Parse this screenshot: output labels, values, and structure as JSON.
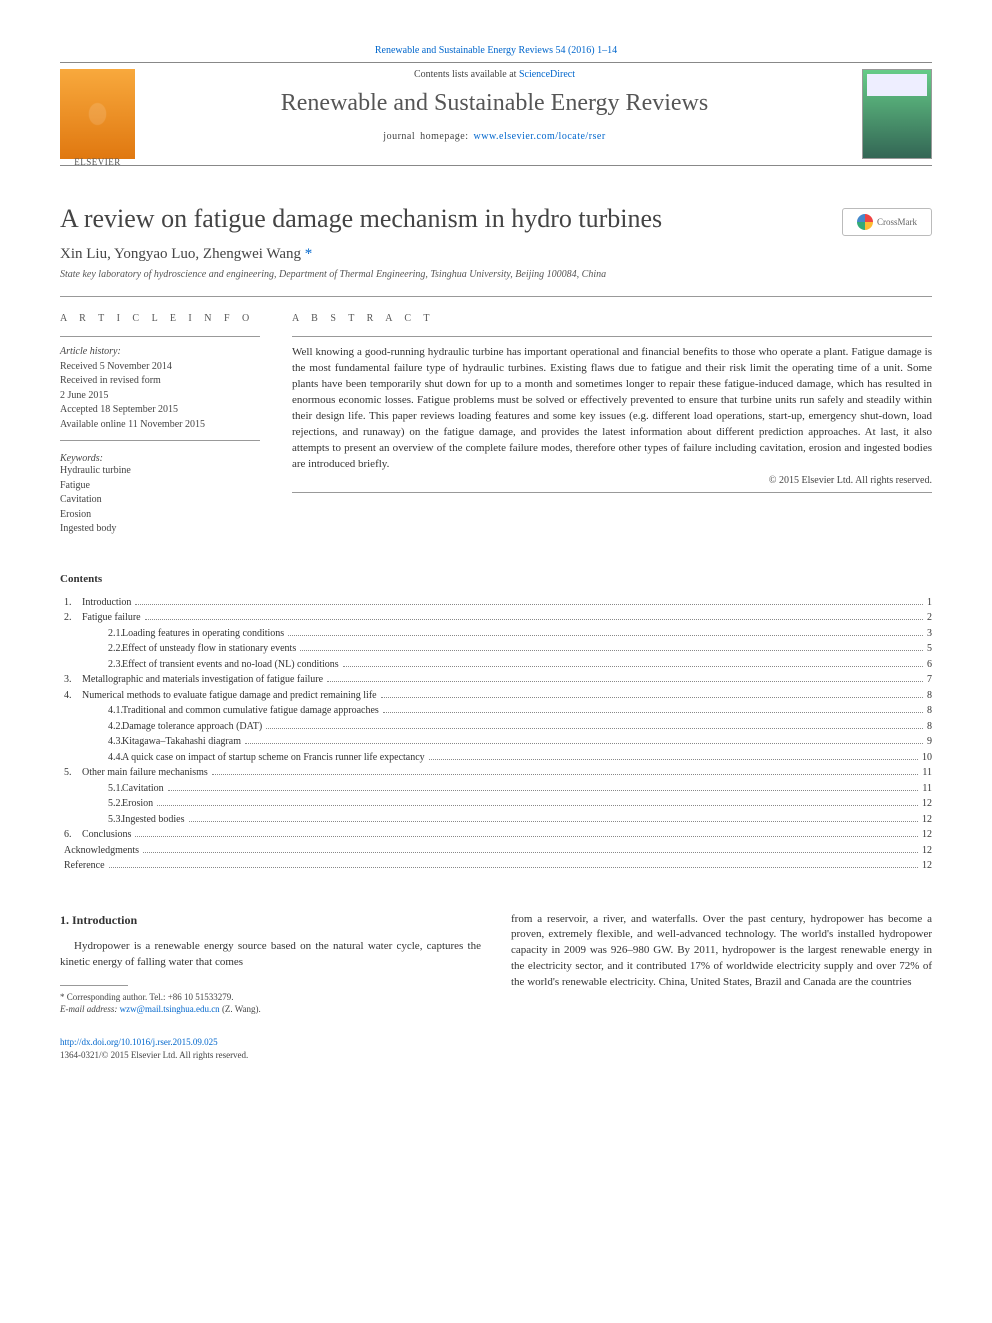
{
  "topLink": "Renewable and Sustainable Energy Reviews 54 (2016) 1–14",
  "header": {
    "contentsLine": "Contents lists available at ",
    "contentsLinkText": "ScienceDirect",
    "journalTitle": "Renewable and Sustainable Energy Reviews",
    "homepagePrefix": "journal homepage: ",
    "homepageUrl": "www.elsevier.com/locate/rser",
    "publisher": "ELSEVIER"
  },
  "article": {
    "title": "A review on fatigue damage mechanism in hydro turbines",
    "authors": "Xin Liu, Yongyao Luo, Zhengwei Wang",
    "corrMark": "*",
    "affiliation": "State key laboratory of hydroscience and engineering, Department of Thermal Engineering, Tsinghua University, Beijing 100084, China",
    "crossmarkLabel": "CrossMark"
  },
  "info": {
    "heading": "A R T I C L E   I N F O",
    "historyLabel": "Article history:",
    "history": [
      "Received 5 November 2014",
      "Received in revised form",
      "2 June 2015",
      "Accepted 18 September 2015",
      "Available online 11 November 2015"
    ],
    "keywordsLabel": "Keywords:",
    "keywords": [
      "Hydraulic turbine",
      "Fatigue",
      "Cavitation",
      "Erosion",
      "Ingested body"
    ]
  },
  "abstract": {
    "heading": "A B S T R A C T",
    "text": "Well knowing a good-running hydraulic turbine has important operational and financial benefits to those who operate a plant. Fatigue damage is the most fundamental failure type of hydraulic turbines. Existing flaws due to fatigue and their risk limit the operating time of a unit. Some plants have been temporarily shut down for up to a month and sometimes longer to repair these fatigue-induced damage, which has resulted in enormous economic losses. Fatigue problems must be solved or effectively prevented to ensure that turbine units run safely and steadily within their design life. This paper reviews loading features and some key issues (e.g. different load operations, start-up, emergency shut-down, load rejections, and runaway) on the fatigue damage, and provides the latest information about different prediction approaches. At last, it also attempts to present an overview of the complete failure modes, therefore other types of failure including cavitation, erosion and ingested bodies are introduced briefly.",
    "copyright": "© 2015 Elsevier Ltd. All rights reserved."
  },
  "contents": {
    "heading": "Contents",
    "items": [
      {
        "level": 1,
        "num": "1.",
        "title": "Introduction",
        "page": "1"
      },
      {
        "level": 1,
        "num": "2.",
        "title": "Fatigue failure",
        "page": "2"
      },
      {
        "level": 2,
        "num": "2.1.",
        "title": "Loading features in operating conditions",
        "page": "3"
      },
      {
        "level": 2,
        "num": "2.2.",
        "title": "Effect of unsteady flow in stationary events",
        "page": "5"
      },
      {
        "level": 2,
        "num": "2.3.",
        "title": "Effect of transient events and no-load (NL) conditions",
        "page": "6"
      },
      {
        "level": 1,
        "num": "3.",
        "title": "Metallographic and materials investigation of fatigue failure",
        "page": "7"
      },
      {
        "level": 1,
        "num": "4.",
        "title": "Numerical methods to evaluate fatigue damage and predict remaining life",
        "page": "8"
      },
      {
        "level": 2,
        "num": "4.1.",
        "title": "Traditional and common cumulative fatigue damage approaches",
        "page": "8"
      },
      {
        "level": 2,
        "num": "4.2.",
        "title": "Damage tolerance approach (DAT)",
        "page": "8"
      },
      {
        "level": 2,
        "num": "4.3.",
        "title": "Kitagawa–Takahashi diagram",
        "page": "9"
      },
      {
        "level": 2,
        "num": "4.4.",
        "title": "A quick case on impact of startup scheme on Francis runner life expectancy",
        "page": "10"
      },
      {
        "level": 1,
        "num": "5.",
        "title": "Other main failure mechanisms",
        "page": "11"
      },
      {
        "level": 2,
        "num": "5.1.",
        "title": "Cavitation",
        "page": "11"
      },
      {
        "level": 2,
        "num": "5.2.",
        "title": "Erosion",
        "page": "12"
      },
      {
        "level": 2,
        "num": "5.3.",
        "title": "Ingested bodies",
        "page": "12"
      },
      {
        "level": 1,
        "num": "6.",
        "title": "Conclusions",
        "page": "12"
      },
      {
        "level": 0,
        "num": "",
        "title": "Acknowledgments",
        "page": "12"
      },
      {
        "level": 0,
        "num": "",
        "title": "Reference",
        "page": "12"
      }
    ]
  },
  "body": {
    "section1Heading": "1. Introduction",
    "col1p1": "Hydropower is a renewable energy source based on the natural water cycle, captures the kinetic energy of falling water that comes",
    "col2p1": "from a reservoir, a river, and waterfalls. Over the past century, hydropower has become a proven, extremely flexible, and well-advanced technology. The world's installed hydropower capacity in 2009 was 926–980 GW. By 2011, hydropower is the largest renewable energy in the electricity sector, and it contributed 17% of worldwide electricity supply and over 72% of the world's renewable electricity. China, United States, Brazil and Canada are the countries"
  },
  "footnote": {
    "corr": "* Corresponding author. Tel.: +86 10 51533279.",
    "emailLabel": "E-mail address: ",
    "email": "wzw@mail.tsinghua.edu.cn",
    "emailSuffix": " (Z. Wang)."
  },
  "bottom": {
    "doi": "http://dx.doi.org/10.1016/j.rser.2015.09.025",
    "issn": "1364-0321/© 2015 Elsevier Ltd. All rights reserved."
  },
  "colors": {
    "link": "#0066cc",
    "rule": "#999999",
    "text": "#333333",
    "muted": "#555555"
  }
}
